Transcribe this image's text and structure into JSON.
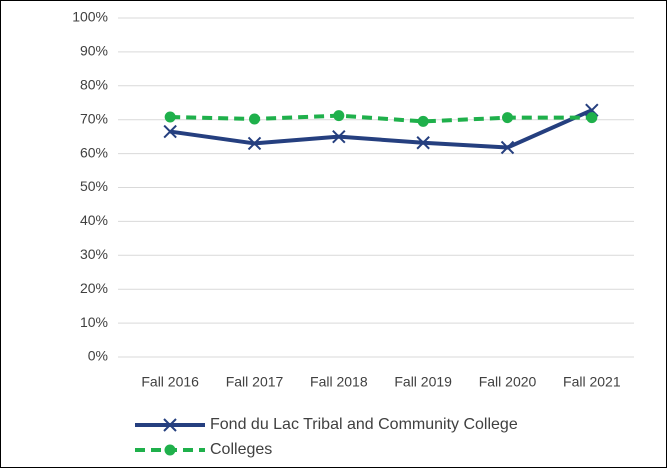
{
  "chart_data": {
    "type": "line",
    "categories": [
      "Fall 2016",
      "Fall 2017",
      "Fall 2018",
      "Fall 2019",
      "Fall 2020",
      "Fall 2021"
    ],
    "series": [
      {
        "name": "Fond du Lac Tribal and Community College",
        "color": "#253f7f",
        "values": [
          66.5,
          63,
          65,
          63.2,
          61.8,
          72.8
        ]
      },
      {
        "name": "Colleges",
        "color": "#1fb04b",
        "values": [
          70.8,
          70.2,
          71.2,
          69.5,
          70.6,
          70.6
        ]
      }
    ],
    "ylim": [
      0,
      100
    ],
    "yticks": [
      {
        "value": 0,
        "label": "0%"
      },
      {
        "value": 10,
        "label": "10%"
      },
      {
        "value": 20,
        "label": "20%"
      },
      {
        "value": 30,
        "label": "30%"
      },
      {
        "value": 40,
        "label": "40%"
      },
      {
        "value": 50,
        "label": "50%"
      },
      {
        "value": 60,
        "label": "60%"
      },
      {
        "value": 70,
        "label": "70%"
      },
      {
        "value": 80,
        "label": "80%"
      },
      {
        "value": 90,
        "label": "90%"
      },
      {
        "value": 100,
        "label": "100%"
      }
    ],
    "grid": true,
    "legend": "bottom"
  }
}
